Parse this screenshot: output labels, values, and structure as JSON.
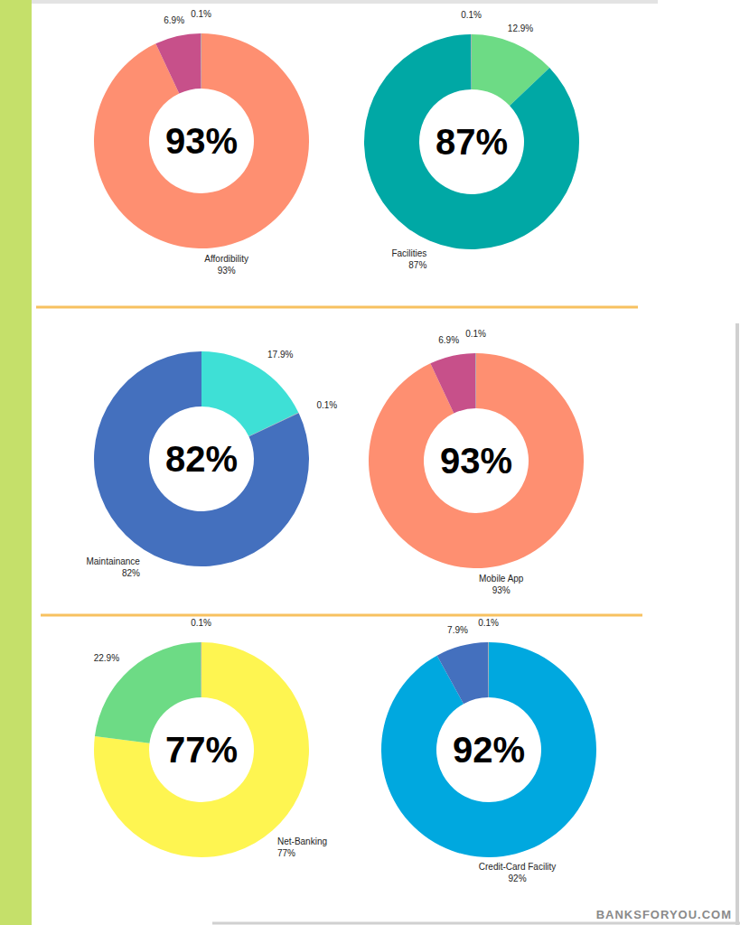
{
  "chart_data": [
    {
      "type": "donut",
      "title": "Affordibility",
      "values": [
        93,
        6.9,
        0.1
      ],
      "value_labels": [
        "93%",
        "6.9%",
        "0.1%"
      ],
      "colors": [
        "#fe8f71",
        "#c7508a",
        "#9e9e9e"
      ],
      "data_labels": true
    },
    {
      "type": "donut",
      "title": "Facilities",
      "values": [
        12.9,
        87,
        0.1
      ],
      "value_labels": [
        "12.9%",
        "87%",
        "0.1%"
      ],
      "colors": [
        "#6ddb85",
        "#00a8a5",
        "#9e9e9e"
      ],
      "data_labels": true
    },
    {
      "type": "donut",
      "title": "Maintainance",
      "values": [
        17.9,
        0.1,
        82
      ],
      "value_labels": [
        "17.9%",
        "0.1%",
        "82%"
      ],
      "colors": [
        "#3ee0d6",
        "#9e9e9e",
        "#4470be"
      ],
      "data_labels": true
    },
    {
      "type": "donut",
      "title": "Mobile App",
      "values": [
        93,
        6.9,
        0.1
      ],
      "value_labels": [
        "93%",
        "6.9%",
        "0.1%"
      ],
      "colors": [
        "#fe8f71",
        "#c7508a",
        "#9e9e9e"
      ],
      "data_labels": true
    },
    {
      "type": "donut",
      "title": "Net-Banking",
      "values": [
        77,
        22.9,
        0.1
      ],
      "value_labels": [
        "77%",
        "22.9%",
        "0.1%"
      ],
      "colors": [
        "#fef551",
        "#6ddb85",
        "#9e9e9e"
      ],
      "data_labels": true
    },
    {
      "type": "donut",
      "title": "Credit-Card Facility",
      "values": [
        92,
        7.9,
        0.1
      ],
      "value_labels": [
        "92%",
        "7.9%",
        "0.1%"
      ],
      "colors": [
        "#00a8df",
        "#4470be",
        "#9e9e9e"
      ],
      "data_labels": true
    }
  ],
  "watermark": "BANKSFORYOU.COM"
}
